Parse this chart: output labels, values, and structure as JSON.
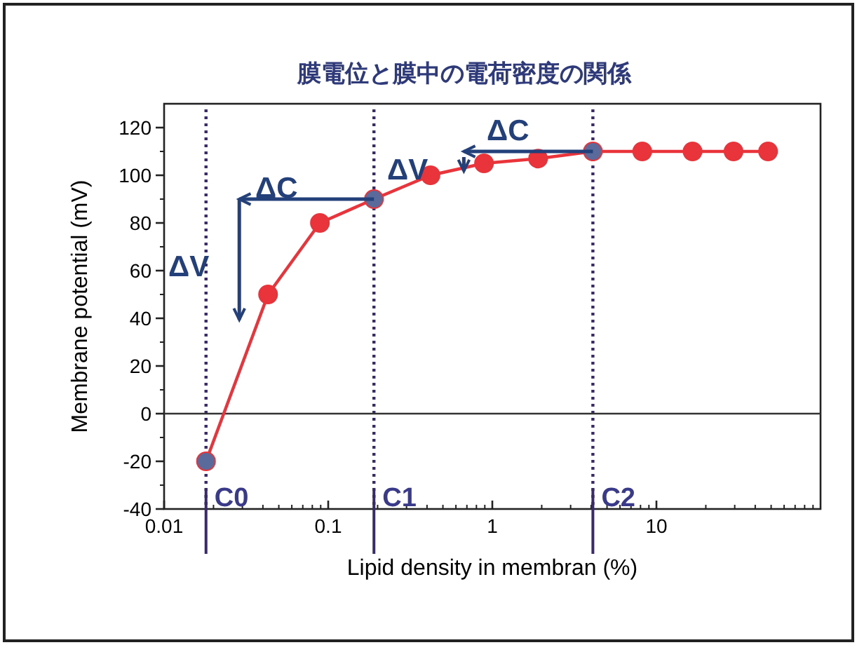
{
  "chart_data": {
    "type": "line",
    "title": "膜電位と膜中の電荷密度の関係",
    "xlabel": "Lipid density in membran (%)",
    "ylabel": "Membrane potential (mV)",
    "log": "x",
    "xlim": [
      0.01,
      100
    ],
    "ylim": [
      -40,
      130
    ],
    "xticks": [
      0.01,
      0.1,
      1,
      10
    ],
    "yticks": [
      -40,
      -20,
      0,
      20,
      40,
      60,
      80,
      100,
      120
    ],
    "grid": false,
    "marker": "circle",
    "line_style": "solid",
    "x": [
      0.018,
      0.043,
      0.089,
      0.19,
      0.42,
      0.89,
      1.9,
      4.1,
      8.2,
      16.6,
      29.5,
      47.9
    ],
    "series": [
      {
        "color": "#e8343a",
        "colors": [
          "#5a6a9a",
          "#e8343a",
          "#e8343a",
          "#5a6a9a",
          "#e8343a",
          "#e8343a",
          "#e8343a",
          "#5a6a9a",
          "#e8343a",
          "#e8343a",
          "#e8343a",
          "#e8343a"
        ],
        "values": [
          -20,
          50,
          80,
          90,
          100,
          105,
          107,
          110,
          110,
          110,
          110,
          110
        ]
      }
    ],
    "ref_lines": [
      {
        "axis": "x",
        "value": 0.018,
        "label": "C0",
        "color": "#3a2a6a",
        "line_style": "dotted"
      },
      {
        "axis": "x",
        "value": 0.19,
        "label": "C1",
        "color": "#3a2a6a",
        "line_style": "dotted"
      },
      {
        "axis": "x",
        "value": 4.1,
        "label": "C2",
        "color": "#3a2a6a",
        "line_style": "dotted"
      },
      {
        "axis": "y",
        "value": 0,
        "label": null,
        "color": "#333333",
        "line_style": "solid"
      }
    ],
    "annotations": [
      "ΔV",
      {
        "text": "ΔC",
        "x": 0.19,
        "y": 90
      },
      "ΔV",
      {
        "text": "ΔC",
        "x": 4.1,
        "y": 110
      }
    ]
  }
}
